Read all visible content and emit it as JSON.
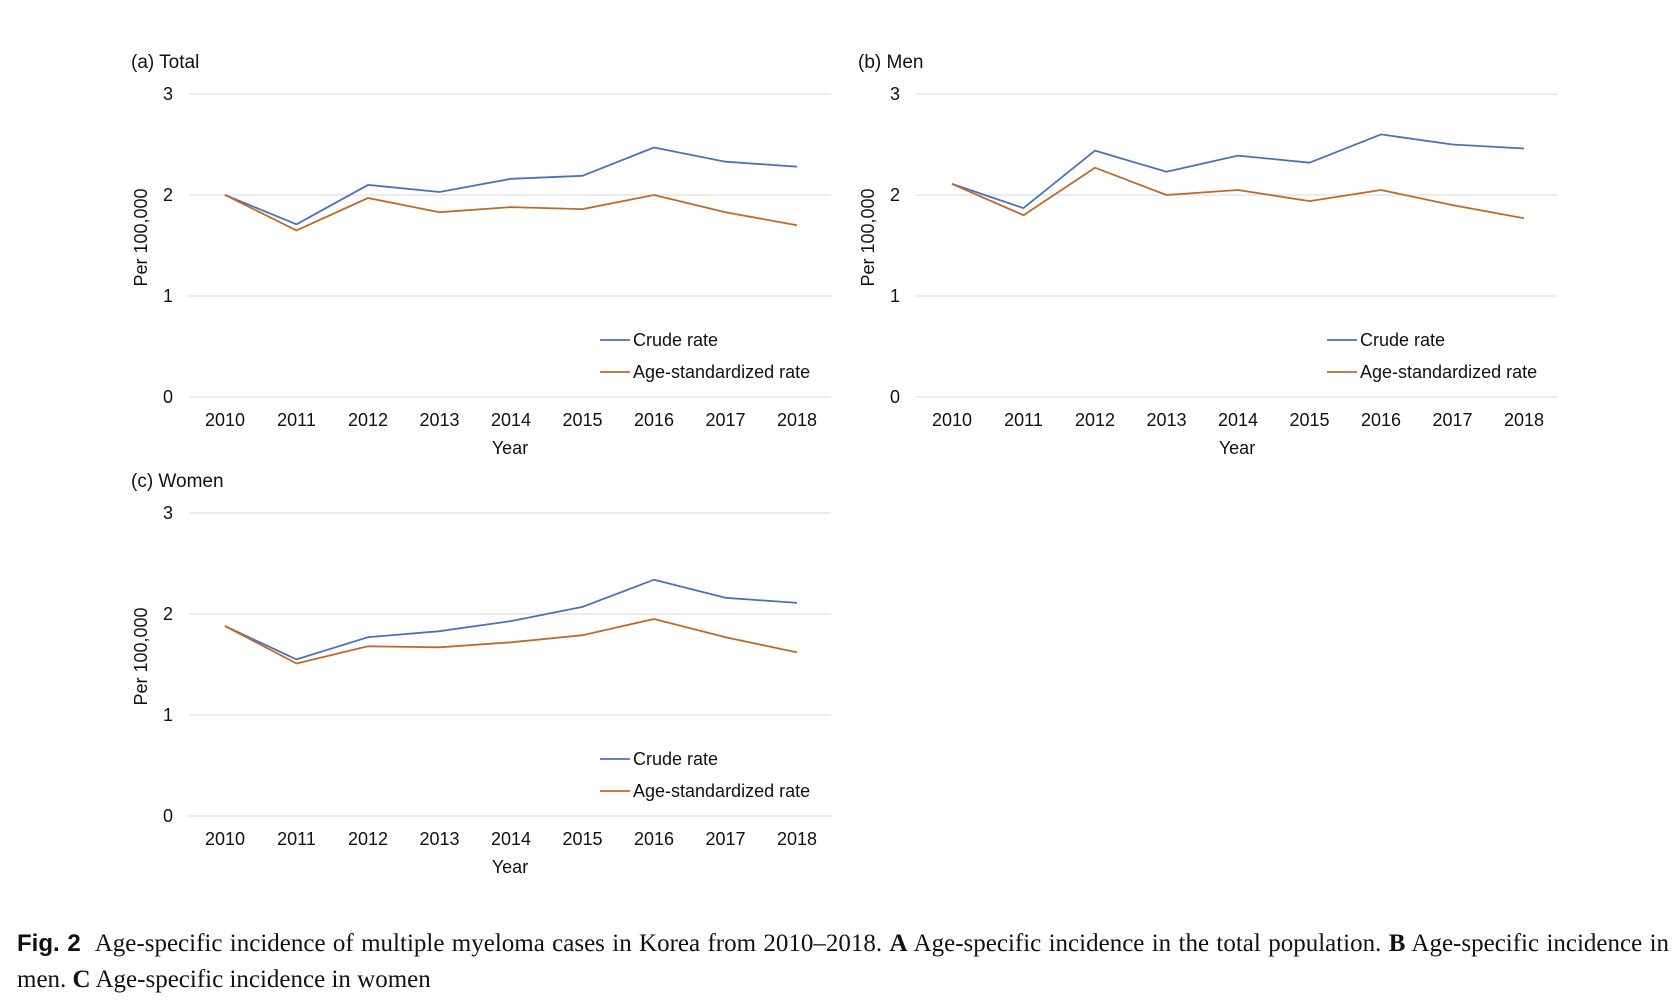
{
  "caption": {
    "label": "Fig. 2",
    "intro": "Age-specific incidence of multiple myeloma cases in Korea from 2010–2018.",
    "a_letter": "A",
    "a_text": "Age-specific incidence in the total population.",
    "b_letter": "B",
    "b_text": "Age-specific incidence in men.",
    "c_letter": "C",
    "c_text": "Age-specific incidence in women"
  },
  "colors": {
    "crude": "#4a72b8",
    "age_standardized": "#bf6a2b",
    "grid": "#d9d9d9"
  },
  "chart_data": [
    {
      "type": "line",
      "title": "(a) Total",
      "xlabel": "Year",
      "ylabel": "Per 100,000",
      "categories": [
        "2010",
        "2011",
        "2012",
        "2013",
        "2014",
        "2015",
        "2016",
        "2017",
        "2018"
      ],
      "yticks": [
        "0",
        "1",
        "2",
        "3"
      ],
      "ylim": [
        0,
        3
      ],
      "grid": true,
      "legend_position": "bottom-right",
      "series": [
        {
          "name": "Crude rate",
          "values": [
            2.0,
            1.71,
            2.1,
            2.03,
            2.16,
            2.19,
            2.47,
            2.33,
            2.28
          ]
        },
        {
          "name": "Age-standardized rate",
          "values": [
            2.0,
            1.65,
            1.97,
            1.83,
            1.88,
            1.86,
            2.0,
            1.83,
            1.7
          ]
        }
      ]
    },
    {
      "type": "line",
      "title": "(b) Men",
      "xlabel": "Year",
      "ylabel": "Per 100,000",
      "categories": [
        "2010",
        "2011",
        "2012",
        "2013",
        "2014",
        "2015",
        "2016",
        "2017",
        "2018"
      ],
      "yticks": [
        "0",
        "1",
        "2",
        "3"
      ],
      "ylim": [
        0,
        3
      ],
      "grid": true,
      "legend_position": "bottom-right",
      "series": [
        {
          "name": "Crude rate",
          "values": [
            2.11,
            1.87,
            2.44,
            2.23,
            2.39,
            2.32,
            2.6,
            2.5,
            2.46
          ]
        },
        {
          "name": "Age-standardized rate",
          "values": [
            2.11,
            1.8,
            2.27,
            2.0,
            2.05,
            1.94,
            2.05,
            1.9,
            1.77
          ]
        }
      ]
    },
    {
      "type": "line",
      "title": "(c) Women",
      "xlabel": "Year",
      "ylabel": "Per 100,000",
      "categories": [
        "2010",
        "2011",
        "2012",
        "2013",
        "2014",
        "2015",
        "2016",
        "2017",
        "2018"
      ],
      "yticks": [
        "0",
        "1",
        "2",
        "3"
      ],
      "ylim": [
        0,
        3
      ],
      "grid": true,
      "legend_position": "bottom-right",
      "series": [
        {
          "name": "Crude rate",
          "values": [
            1.88,
            1.55,
            1.77,
            1.83,
            1.93,
            2.07,
            2.34,
            2.16,
            2.11
          ]
        },
        {
          "name": "Age-standardized rate",
          "values": [
            1.88,
            1.51,
            1.68,
            1.67,
            1.72,
            1.79,
            1.95,
            1.77,
            1.62
          ]
        }
      ]
    }
  ]
}
